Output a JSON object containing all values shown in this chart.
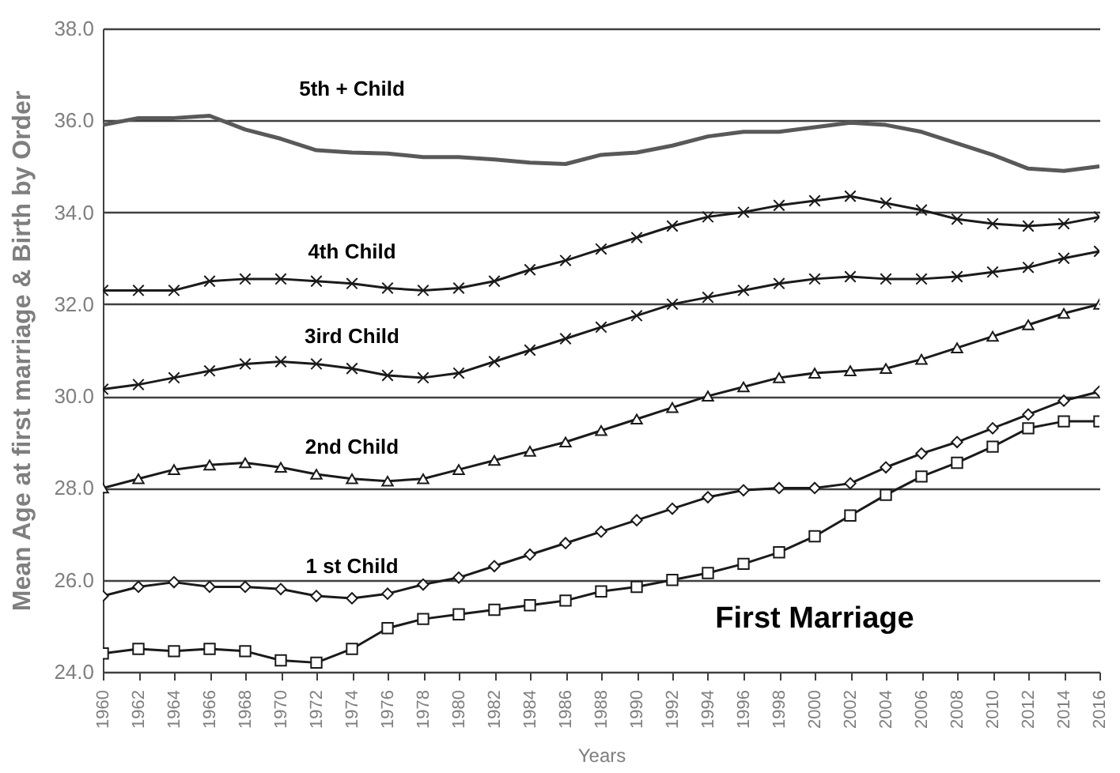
{
  "chart_data": {
    "type": "line",
    "xlabel": "Years",
    "ylabel": "Mean Age at first marriage & Birth by Order",
    "x": [
      1960,
      1962,
      1964,
      1966,
      1968,
      1970,
      1972,
      1974,
      1976,
      1978,
      1980,
      1982,
      1984,
      1986,
      1988,
      1990,
      1992,
      1994,
      1996,
      1998,
      2000,
      2002,
      2004,
      2006,
      2008,
      2010,
      2012,
      2014,
      2016
    ],
    "series": [
      {
        "name": "5th + Child",
        "color": "#595959",
        "marker": "none",
        "values": [
          35.9,
          36.05,
          36.05,
          36.1,
          35.8,
          35.6,
          35.35,
          35.3,
          35.28,
          35.2,
          35.2,
          35.15,
          35.08,
          35.05,
          35.25,
          35.3,
          35.45,
          35.65,
          35.75,
          35.75,
          35.85,
          35.95,
          35.9,
          35.75,
          35.5,
          35.25,
          34.95,
          34.9,
          35.0
        ]
      },
      {
        "name": "4th  Child",
        "color": "#1a1a1a",
        "marker": "cross",
        "values": [
          32.3,
          32.3,
          32.3,
          32.5,
          32.55,
          32.55,
          32.5,
          32.45,
          32.35,
          32.3,
          32.35,
          32.5,
          32.75,
          32.95,
          33.2,
          33.45,
          33.7,
          33.9,
          34.0,
          34.15,
          34.25,
          34.35,
          34.2,
          34.05,
          33.85,
          33.75,
          33.7,
          33.75,
          33.9
        ]
      },
      {
        "name": "3ird Child",
        "color": "#1a1a1a",
        "marker": "cross",
        "values": [
          30.15,
          30.25,
          30.4,
          30.55,
          30.7,
          30.75,
          30.7,
          30.6,
          30.45,
          30.4,
          30.5,
          30.75,
          31.0,
          31.25,
          31.5,
          31.75,
          32.0,
          32.15,
          32.3,
          32.45,
          32.55,
          32.6,
          32.55,
          32.55,
          32.6,
          32.7,
          32.8,
          33.0,
          33.15
        ]
      },
      {
        "name": "2nd  Child",
        "color": "#1a1a1a",
        "marker": "triangle",
        "values": [
          28.0,
          28.2,
          28.4,
          28.5,
          28.55,
          28.45,
          28.3,
          28.2,
          28.15,
          28.2,
          28.4,
          28.6,
          28.8,
          29.0,
          29.25,
          29.5,
          29.75,
          30.0,
          30.2,
          30.4,
          30.5,
          30.55,
          30.6,
          30.8,
          31.05,
          31.3,
          31.55,
          31.8,
          32.0
        ]
      },
      {
        "name": "1 st Child",
        "color": "#1a1a1a",
        "marker": "diamond",
        "values": [
          25.65,
          25.85,
          25.95,
          25.85,
          25.85,
          25.8,
          25.65,
          25.6,
          25.7,
          25.9,
          26.05,
          26.3,
          26.55,
          26.8,
          27.05,
          27.3,
          27.55,
          27.8,
          27.95,
          28.0,
          28.0,
          28.1,
          28.45,
          28.75,
          29.0,
          29.3,
          29.6,
          29.9,
          30.1
        ]
      },
      {
        "name": "First Marriage",
        "color": "#1a1a1a",
        "marker": "square",
        "values": [
          24.4,
          24.5,
          24.45,
          24.5,
          24.45,
          24.25,
          24.2,
          24.5,
          24.95,
          25.15,
          25.25,
          25.35,
          25.45,
          25.55,
          25.75,
          25.85,
          26.0,
          26.15,
          26.35,
          26.6,
          26.95,
          27.4,
          27.85,
          28.25,
          28.55,
          28.9,
          29.3,
          29.45,
          29.45
        ]
      }
    ],
    "xlim": [
      1960,
      2016
    ],
    "xticks": [
      1960,
      1962,
      1964,
      1966,
      1968,
      1970,
      1972,
      1974,
      1976,
      1978,
      1980,
      1982,
      1984,
      1986,
      1988,
      1990,
      1992,
      1994,
      1996,
      1998,
      2000,
      2002,
      2004,
      2006,
      2008,
      2010,
      2012,
      2014,
      2016
    ],
    "ylim": [
      24,
      38
    ],
    "yticks": [
      {
        "value": 24,
        "label": "24.0"
      },
      {
        "value": 26,
        "label": "26.0"
      },
      {
        "value": 28,
        "label": "28.0"
      },
      {
        "value": 30,
        "label": "30.0"
      },
      {
        "value": 32,
        "label": "32.0"
      },
      {
        "value": 34,
        "label": "34.0"
      },
      {
        "value": 36,
        "label": "36.0"
      },
      {
        "value": 38,
        "label": "38.0"
      }
    ],
    "grid": "y",
    "legend": false
  }
}
